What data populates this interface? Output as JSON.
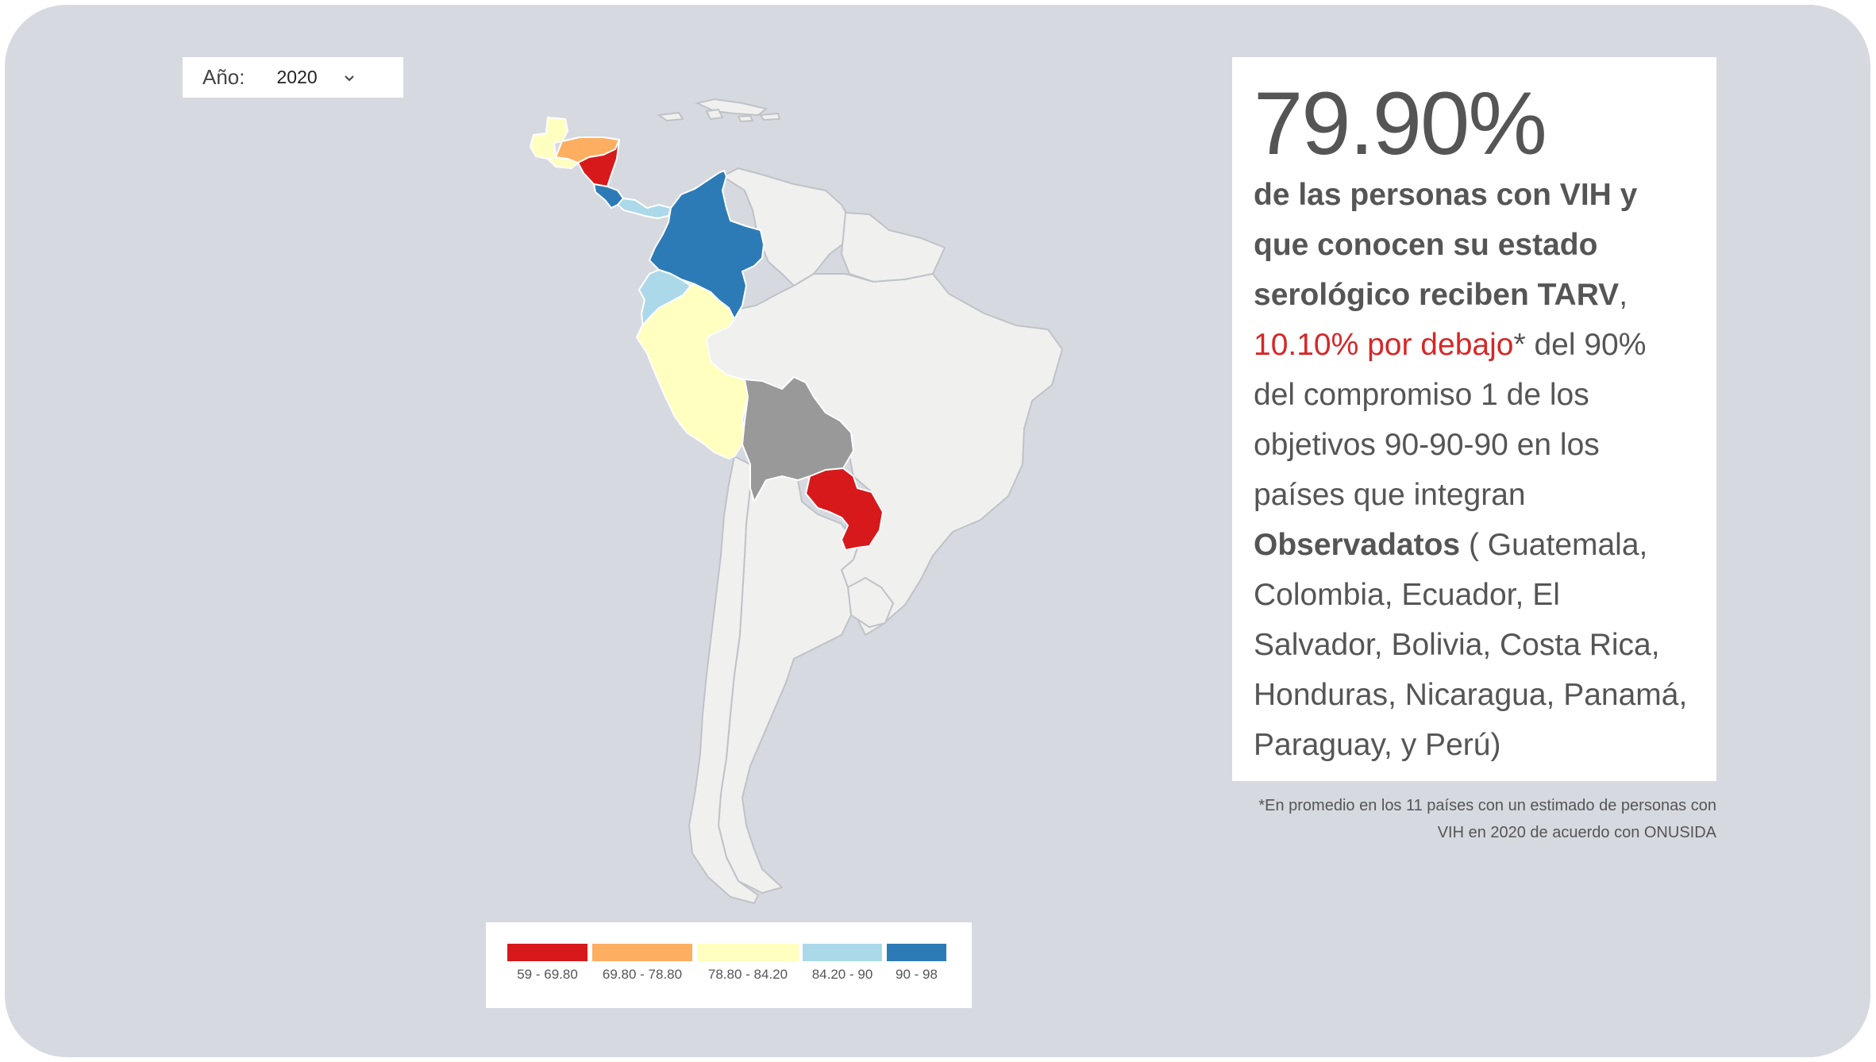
{
  "year_selector": {
    "label": "Año:",
    "value": "2020",
    "chevron": "chevron-down-icon"
  },
  "map": {
    "highlighted_countries": [
      {
        "name": "Guatemala",
        "bin": "78.80 - 84.20",
        "color": "#ffffbf"
      },
      {
        "name": "Honduras",
        "bin": "69.80 - 78.80",
        "color": "#fdae61"
      },
      {
        "name": "El Salvador",
        "bin": "78.80 - 84.20",
        "color": "#ffffbf"
      },
      {
        "name": "Nicaragua",
        "bin": "59 - 69.80",
        "color": "#d7191c"
      },
      {
        "name": "Costa Rica",
        "bin": "90 - 98",
        "color": "#2c7bb6"
      },
      {
        "name": "Panamá",
        "bin": "84.20 - 90",
        "color": "#abd9e9"
      },
      {
        "name": "Colombia",
        "bin": "90 - 98",
        "color": "#2c7bb6"
      },
      {
        "name": "Ecuador",
        "bin": "84.20 - 90",
        "color": "#abd9e9"
      },
      {
        "name": "Perú",
        "bin": "78.80 - 84.20",
        "color": "#ffffbf"
      },
      {
        "name": "Bolivia",
        "bin": "no data",
        "color": "#999999"
      },
      {
        "name": "Paraguay",
        "bin": "59 - 69.80",
        "color": "#d7191c"
      }
    ],
    "other_country_color": "#f0f0ef"
  },
  "legend": {
    "items": [
      {
        "label": "59 - 69.80",
        "color": "#d7191c"
      },
      {
        "label": "69.80 - 78.80",
        "color": "#fdae61"
      },
      {
        "label": "78.80 - 84.20",
        "color": "#ffffbf"
      },
      {
        "label": "84.20 - 90",
        "color": "#abd9e9"
      },
      {
        "label": "90 - 98",
        "color": "#2c7bb6"
      }
    ]
  },
  "info": {
    "percentage": "79.90%",
    "bold_intro": "de las personas con VIH y que conocen su estado serológico reciben TARV",
    "comma": ",",
    "below_text": "10.10% por debajo",
    "after_below": "* del 90% del compromiso 1 de los objetivos 90-90-90 en los países que integran ",
    "observatorio": "Observadatos",
    "countries_text": " ( Guatemala, Colombia, Ecuador, El Salvador, Bolivia, Costa Rica, Honduras, Nicaragua, Panamá, Paraguay, y Perú)",
    "accent_color": "#d62728"
  },
  "footnote": {
    "line1": "*En promedio en los 11 países con un estimado de personas con",
    "line2": "VIH en 2020 de acuerdo con ONUSIDA"
  }
}
